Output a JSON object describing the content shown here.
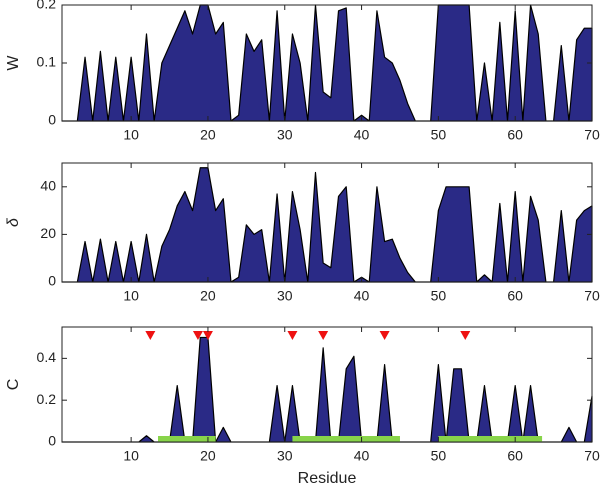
{
  "chart_data": [
    {
      "type": "area",
      "y_label": "W",
      "color": "#2a2a86",
      "x": [
        1,
        2,
        3,
        4,
        5,
        6,
        7,
        8,
        9,
        10,
        11,
        12,
        13,
        14,
        15,
        16,
        17,
        18,
        19,
        20,
        21,
        22,
        23,
        24,
        25,
        26,
        27,
        28,
        29,
        30,
        31,
        32,
        33,
        34,
        35,
        36,
        37,
        38,
        39,
        40,
        41,
        42,
        43,
        44,
        45,
        46,
        47,
        48,
        49,
        50,
        51,
        52,
        53,
        54,
        55,
        56,
        57,
        58,
        59,
        60,
        61,
        62,
        63,
        64,
        65,
        66,
        67,
        68,
        69,
        70
      ],
      "values": [
        0,
        0,
        0,
        0.11,
        0,
        0.12,
        0,
        0.11,
        0,
        0.11,
        0,
        0.15,
        0,
        0.1,
        0.13,
        0.16,
        0.19,
        0.15,
        0.2,
        0.2,
        0.15,
        0.17,
        0,
        0.01,
        0.15,
        0.12,
        0.14,
        0,
        0.19,
        0,
        0.15,
        0.1,
        0,
        0.2,
        0.05,
        0.04,
        0.19,
        0.195,
        0,
        0.01,
        0,
        0.19,
        0.11,
        0.1,
        0.07,
        0.03,
        0,
        0,
        0,
        0.2,
        0.2,
        0.2,
        0.2,
        0.2,
        0,
        0.1,
        0,
        0.17,
        0,
        0.19,
        0,
        0.2,
        0.15,
        0,
        0,
        0.13,
        0,
        0.14,
        0.16,
        0.16
      ],
      "xlim": [
        1,
        70
      ],
      "xticks": [
        10,
        20,
        30,
        40,
        50,
        60,
        70
      ],
      "ylim": [
        0,
        0.2
      ],
      "yticks": [
        0,
        0.1,
        0.2
      ]
    },
    {
      "type": "area",
      "y_label": "δ",
      "color": "#2a2a86",
      "x": [
        1,
        2,
        3,
        4,
        5,
        6,
        7,
        8,
        9,
        10,
        11,
        12,
        13,
        14,
        15,
        16,
        17,
        18,
        19,
        20,
        21,
        22,
        23,
        24,
        25,
        26,
        27,
        28,
        29,
        30,
        31,
        32,
        33,
        34,
        35,
        36,
        37,
        38,
        39,
        40,
        41,
        42,
        43,
        44,
        45,
        46,
        47,
        48,
        49,
        50,
        51,
        52,
        53,
        54,
        55,
        56,
        57,
        58,
        59,
        60,
        61,
        62,
        63,
        64,
        65,
        66,
        67,
        68,
        69,
        70
      ],
      "values": [
        0,
        0,
        0,
        17,
        0,
        18,
        0,
        17,
        0,
        17,
        0,
        20,
        0,
        15,
        22,
        32,
        38,
        30,
        48,
        48,
        30,
        35,
        0,
        2,
        24,
        20,
        22,
        0,
        37,
        0,
        38,
        22,
        0,
        46,
        8,
        6,
        36,
        40,
        0,
        2,
        0,
        40,
        17,
        18,
        10,
        4,
        0,
        0,
        0,
        30,
        40,
        40,
        40,
        40,
        0,
        3,
        0,
        33,
        0,
        38,
        0,
        36,
        26,
        0,
        0,
        30,
        0,
        26,
        30,
        32
      ],
      "xlim": [
        1,
        70
      ],
      "xticks": [
        10,
        20,
        30,
        40,
        50,
        60,
        70
      ],
      "ylim": [
        0,
        50
      ],
      "yticks": [
        0,
        20,
        40
      ]
    },
    {
      "type": "area",
      "y_label": "C",
      "x_label": "Residue",
      "color": "#2a2a86",
      "x": [
        1,
        2,
        3,
        4,
        5,
        6,
        7,
        8,
        9,
        10,
        11,
        12,
        13,
        14,
        15,
        16,
        17,
        18,
        19,
        20,
        21,
        22,
        23,
        24,
        25,
        26,
        27,
        28,
        29,
        30,
        31,
        32,
        33,
        34,
        35,
        36,
        37,
        38,
        39,
        40,
        41,
        42,
        43,
        44,
        45,
        46,
        47,
        48,
        49,
        50,
        51,
        52,
        53,
        54,
        55,
        56,
        57,
        58,
        59,
        60,
        61,
        62,
        63,
        64,
        65,
        66,
        67,
        68,
        69,
        70
      ],
      "values": [
        0,
        0,
        0,
        0,
        0,
        0,
        0,
        0,
        0,
        0,
        0,
        0.03,
        0,
        0,
        0,
        0.27,
        0,
        0,
        0.5,
        0.5,
        0,
        0.07,
        0,
        0,
        0,
        0,
        0,
        0,
        0.27,
        0,
        0.27,
        0,
        0,
        0,
        0.45,
        0,
        0,
        0.35,
        0.41,
        0,
        0,
        0,
        0.37,
        0,
        0,
        0,
        0,
        0,
        0,
        0.37,
        0,
        0.35,
        0.35,
        0,
        0,
        0.27,
        0,
        0,
        0,
        0.27,
        0,
        0.27,
        0,
        0,
        0,
        0,
        0.07,
        0,
        0,
        0.22
      ],
      "xlim": [
        1,
        70
      ],
      "xticks": [
        10,
        20,
        30,
        40,
        50,
        60,
        70
      ],
      "ylim": [
        0,
        0.55
      ],
      "yticks": [
        0,
        0.2,
        0.4
      ],
      "markers": [
        12.5,
        18.7,
        20,
        31,
        35,
        43,
        53.5
      ],
      "marker_color": "#ee1111",
      "segments": [
        [
          13.5,
          21
        ],
        [
          31,
          45
        ],
        [
          50,
          63.5
        ]
      ],
      "segment_color": "#88d44a"
    }
  ]
}
